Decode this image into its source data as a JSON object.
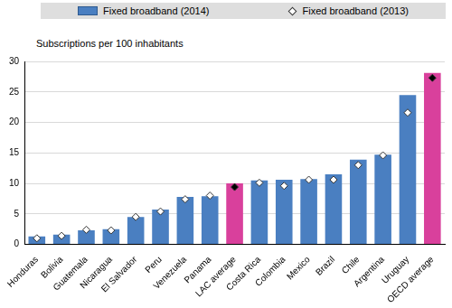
{
  "chart_data": {
    "type": "bar",
    "ylabel": "Subscriptions per 100 inhabitants",
    "categories": [
      "Honduras",
      "Bolivia",
      "Guatemala",
      "Nicaragua",
      "El Salvador",
      "Peru",
      "Venezuela",
      "Panama",
      "LAC average",
      "Costa Rica",
      "Colombia",
      "Mexico",
      "Brazil",
      "Chile",
      "Argentina",
      "Uruguay",
      "OECD average"
    ],
    "series": [
      {
        "name": "Fixed broadband (2014)",
        "type": "bar",
        "color": "#4a7fc1",
        "colors": [
          "#4a7fc1",
          "#4a7fc1",
          "#4a7fc1",
          "#4a7fc1",
          "#4a7fc1",
          "#4a7fc1",
          "#4a7fc1",
          "#4a7fc1",
          "#d9409c",
          "#4a7fc1",
          "#4a7fc1",
          "#4a7fc1",
          "#4a7fc1",
          "#4a7fc1",
          "#4a7fc1",
          "#4a7fc1",
          "#d9409c"
        ],
        "values": [
          1.3,
          1.6,
          2.3,
          2.5,
          4.5,
          5.7,
          7.8,
          7.9,
          10.0,
          10.5,
          10.6,
          10.7,
          11.5,
          13.9,
          14.7,
          24.5,
          28.1
        ]
      },
      {
        "name": "Fixed broadband (2013)",
        "type": "scatter",
        "marker": "diamond",
        "color": "#ffffff",
        "colors": [
          "#ffffff",
          "#ffffff",
          "#ffffff",
          "#ffffff",
          "#ffffff",
          "#ffffff",
          "#ffffff",
          "#ffffff",
          "#000000",
          "#ffffff",
          "#ffffff",
          "#ffffff",
          "#ffffff",
          "#ffffff",
          "#ffffff",
          "#ffffff",
          "#000000"
        ],
        "values": [
          1.0,
          1.4,
          2.4,
          2.3,
          4.5,
          5.4,
          7.4,
          8.0,
          9.4,
          10.1,
          9.6,
          10.6,
          10.6,
          13.0,
          14.6,
          21.6,
          27.3
        ]
      }
    ],
    "ylim": [
      0,
      30
    ],
    "yticks": [
      0,
      5,
      10,
      15,
      20,
      25,
      30
    ],
    "grid": true,
    "legend": "top"
  }
}
